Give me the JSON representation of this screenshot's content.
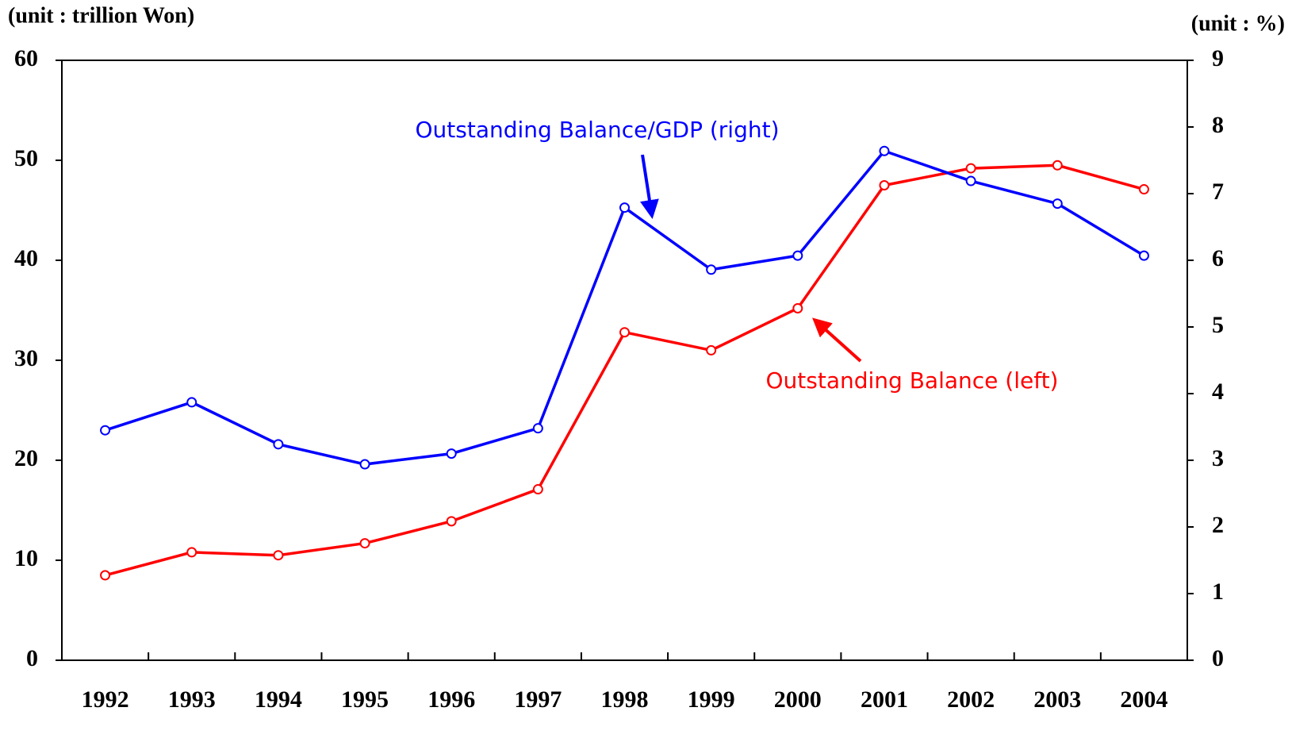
{
  "chart_data": {
    "type": "line",
    "y_label": "(unit : trillion Won)",
    "y2_label": "(unit : %)",
    "categories": [
      "1992",
      "1993",
      "1994",
      "1995",
      "1996",
      "1997",
      "1998",
      "1999",
      "2000",
      "2001",
      "2002",
      "2003",
      "2004"
    ],
    "series": [
      {
        "name": "Outstanding Balance (left)",
        "color": "#ff0000",
        "axis": "y",
        "values": [
          8.5,
          10.8,
          10.5,
          11.7,
          13.9,
          17.1,
          32.8,
          31.0,
          35.2,
          47.5,
          49.2,
          49.5,
          47.1
        ]
      },
      {
        "name": "Outstanding Balance/GDP (right)",
        "color": "#0000ff",
        "axis": "y2",
        "values": [
          3.45,
          3.87,
          3.24,
          2.94,
          3.1,
          3.48,
          6.79,
          5.86,
          6.07,
          7.64,
          7.19,
          6.85,
          6.07
        ]
      }
    ],
    "ylim": [
      0,
      60
    ],
    "yticks": [
      0,
      10,
      20,
      30,
      40,
      50,
      60
    ],
    "y2lim": [
      0,
      9
    ],
    "y2ticks": [
      0,
      1,
      2,
      3,
      4,
      5,
      6,
      7,
      8,
      9
    ]
  }
}
